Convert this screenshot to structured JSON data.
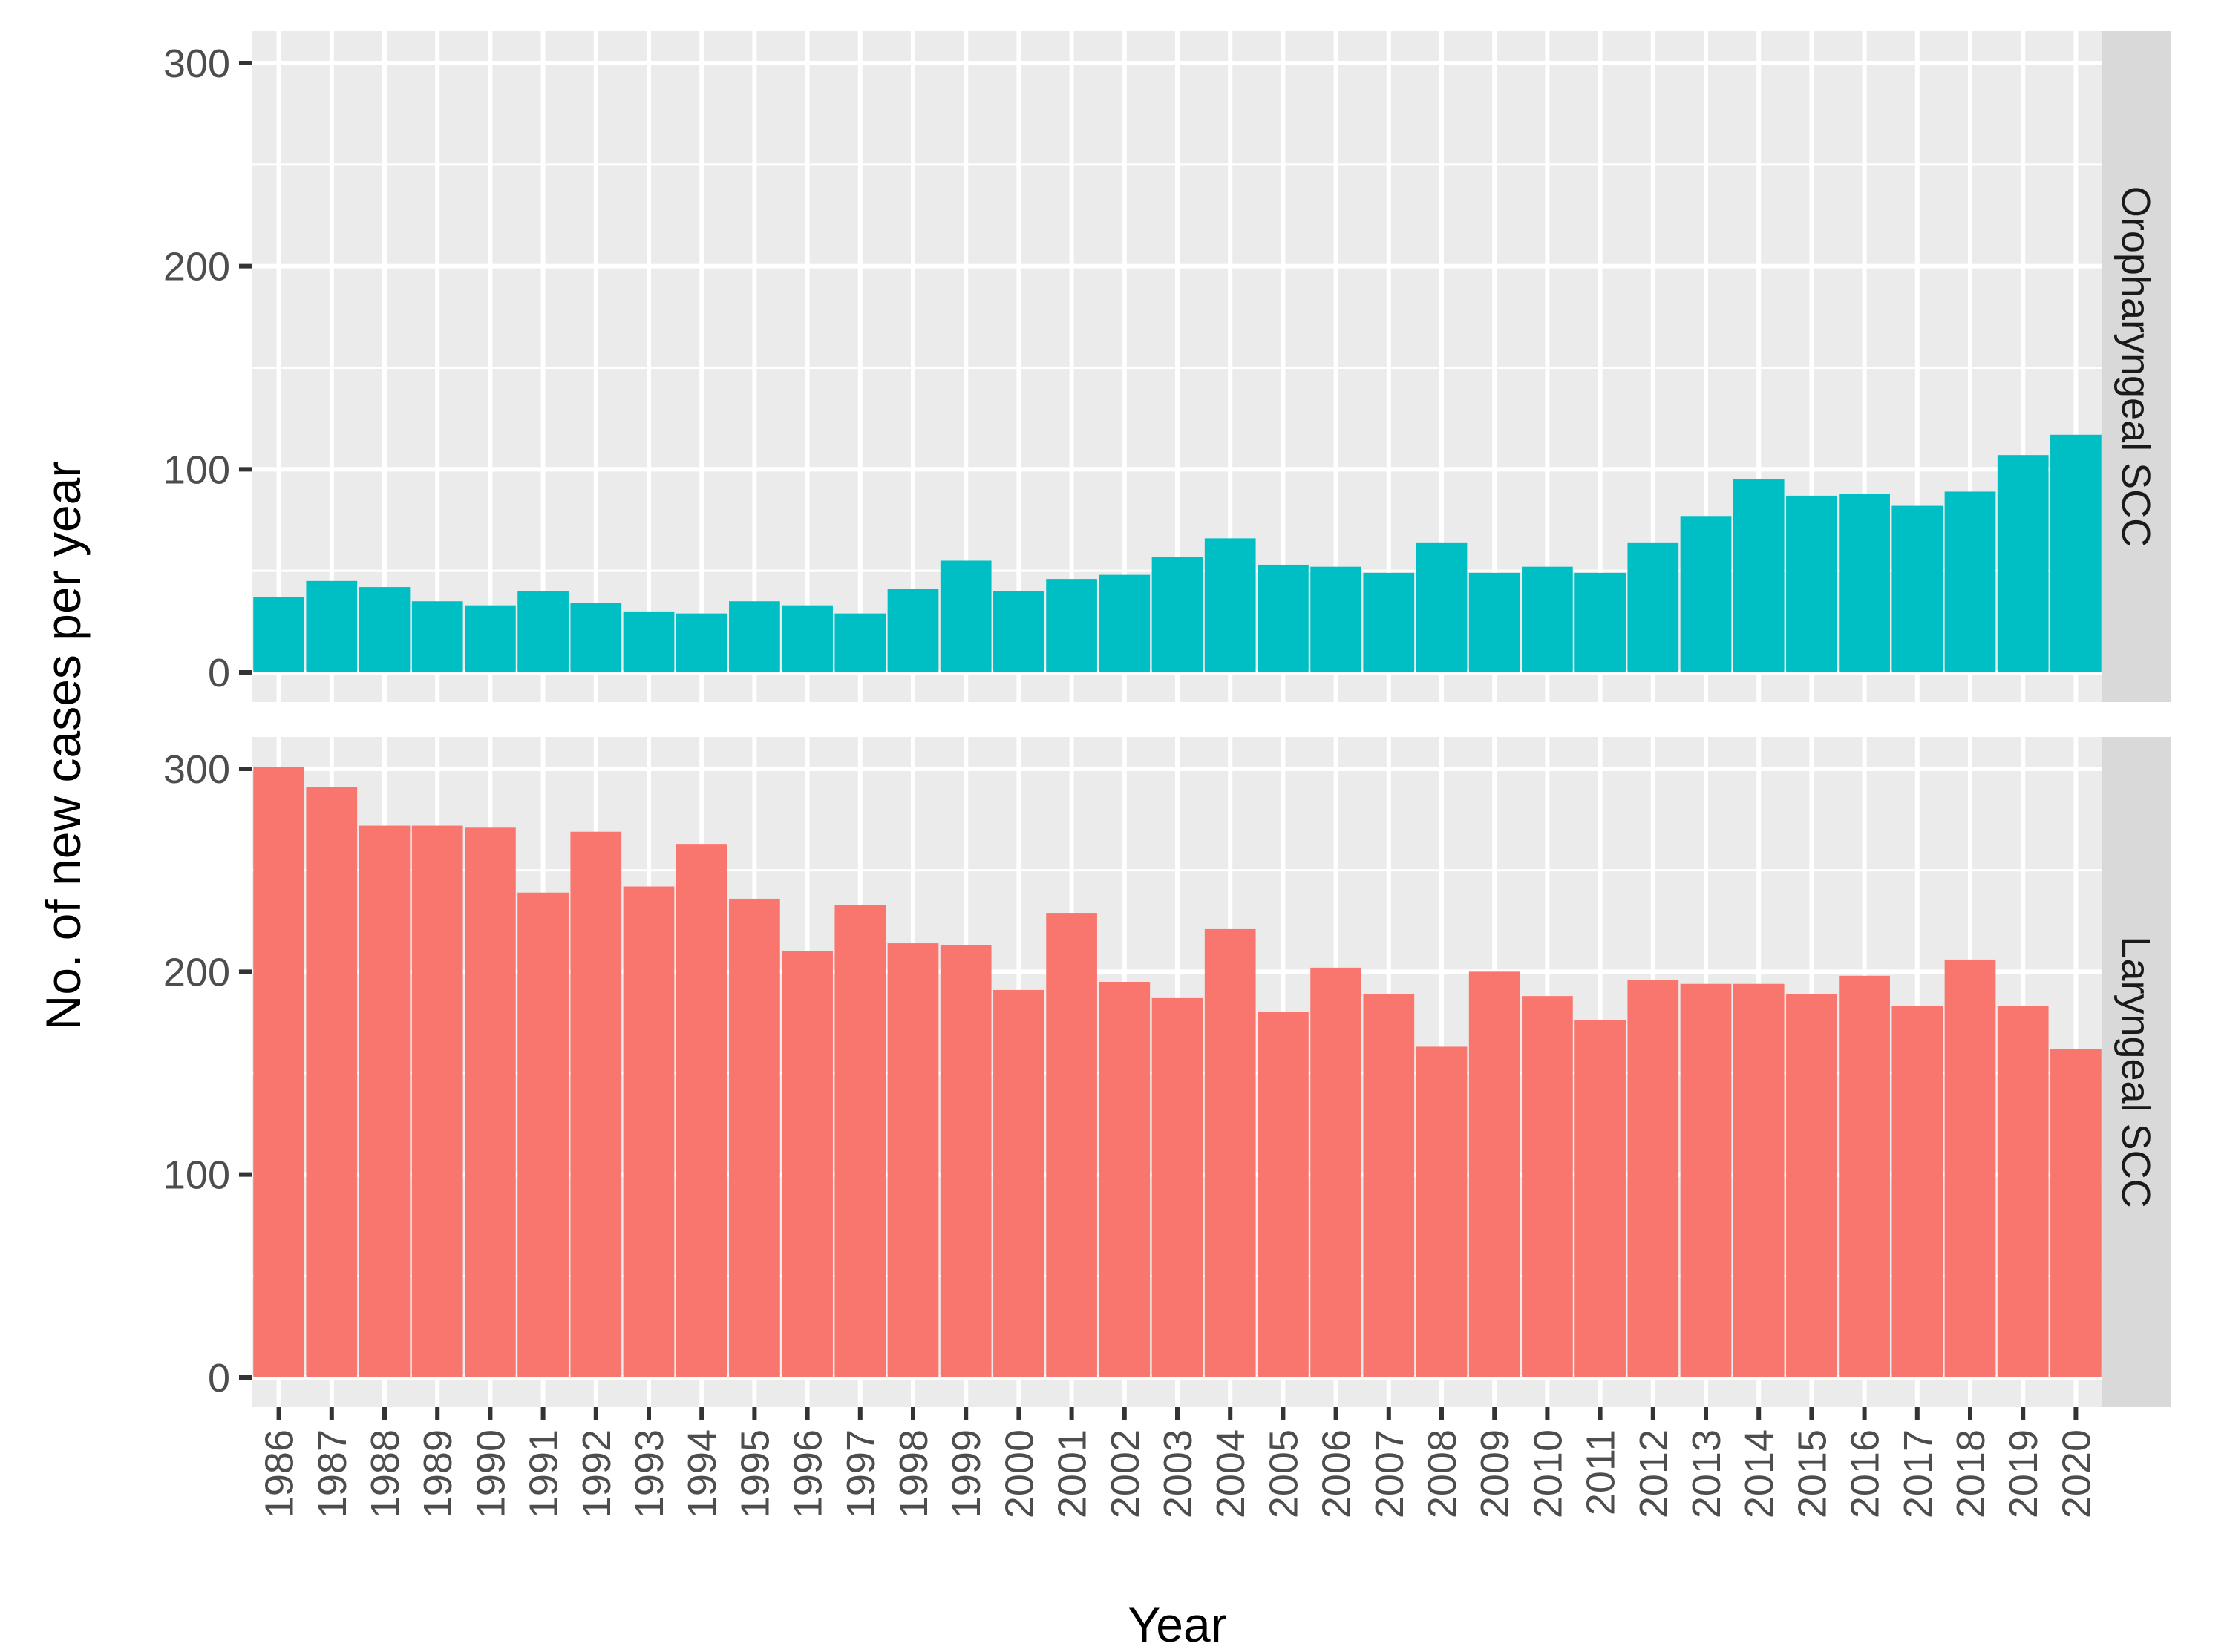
{
  "chart_data": {
    "type": "bar",
    "xlabel": "Year",
    "ylabel": "No. of new cases per year",
    "ylim": [
      0,
      300
    ],
    "yticks": [
      "0",
      "100",
      "200",
      "300"
    ],
    "grid": true,
    "categories": [
      "1986",
      "1987",
      "1988",
      "1989",
      "1990",
      "1991",
      "1992",
      "1993",
      "1994",
      "1995",
      "1996",
      "1997",
      "1998",
      "1999",
      "2000",
      "2001",
      "2002",
      "2003",
      "2004",
      "2005",
      "2006",
      "2007",
      "2008",
      "2009",
      "2010",
      "2011",
      "2012",
      "2013",
      "2014",
      "2015",
      "2016",
      "2017",
      "2018",
      "2019",
      "2020"
    ],
    "panels": [
      {
        "name": "Oropharyngeal SCC",
        "color": "#00BFC4",
        "values": [
          37,
          45,
          42,
          35,
          33,
          40,
          34,
          30,
          29,
          35,
          33,
          29,
          41,
          55,
          40,
          46,
          48,
          57,
          66,
          53,
          52,
          49,
          64,
          49,
          52,
          49,
          64,
          77,
          95,
          87,
          88,
          82,
          89,
          107,
          117
        ]
      },
      {
        "name": "Laryngeal SCC",
        "color": "#F8766D",
        "values": [
          301,
          291,
          272,
          272,
          271,
          239,
          269,
          242,
          263,
          236,
          210,
          233,
          214,
          213,
          191,
          229,
          195,
          187,
          221,
          180,
          202,
          189,
          163,
          200,
          188,
          176,
          196,
          194,
          194,
          189,
          198,
          183,
          206,
          183,
          162
        ]
      }
    ]
  }
}
